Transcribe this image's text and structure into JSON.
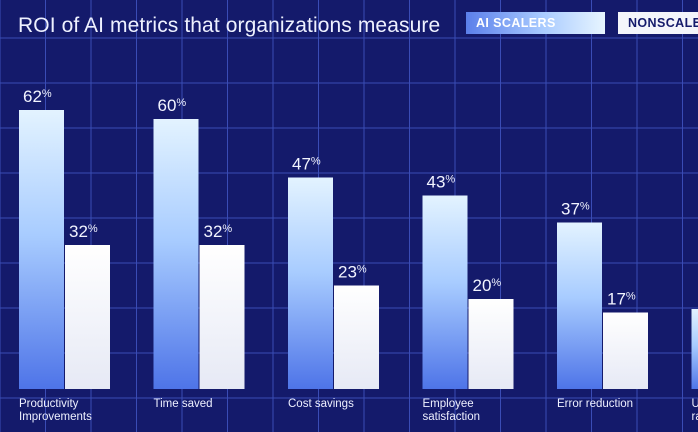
{
  "header": {
    "title": "ROI of AI metrics that organizations measure"
  },
  "legend": {
    "ai_scalers": "AI SCALERS",
    "nonscalers": "NONSCALE"
  },
  "colors": {
    "background": "#141a6b",
    "grid": "#3a4cb5",
    "ai_top": "#e3f3ff",
    "ai_bottom": "#4e74e8",
    "non_top": "#ffffff",
    "non_bottom": "#e9ebf6"
  },
  "chart_data": {
    "type": "bar",
    "title": "ROI of AI metrics that organizations measure",
    "categories": [
      [
        "Productivity",
        "Improvements"
      ],
      [
        "Time saved"
      ],
      [
        "Cost savings"
      ],
      [
        "Employee",
        "satisfaction"
      ],
      [
        "Error reduction"
      ],
      [
        "U",
        "ra"
      ]
    ],
    "series": [
      {
        "name": "AI SCALERS",
        "values": [
          62,
          60,
          47,
          43,
          37,
          null
        ]
      },
      {
        "name": "NONSCALE",
        "values": [
          32,
          32,
          23,
          20,
          17,
          null
        ]
      }
    ],
    "partial_last_bar_visible": true,
    "value_suffix": "%",
    "ylim": [
      0,
      70
    ],
    "grid": true,
    "legend_position": "top-right"
  }
}
